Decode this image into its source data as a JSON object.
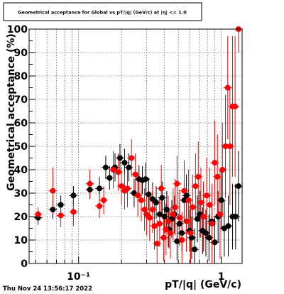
{
  "chart_data": {
    "type": "scatter",
    "title": "Geometrical acceptance for Global vs pT/|q| (GeV/c) at |η| <= 1.0",
    "xlabel": "pT/|q| (GeV/c)",
    "ylabel": "Geometrical acceptance (%)",
    "x_scale": "log",
    "xlim": [
      0.045,
      1.4
    ],
    "ylim": [
      0,
      100
    ],
    "yticks": [
      0,
      10,
      20,
      30,
      40,
      50,
      60,
      70,
      80,
      90,
      100
    ],
    "ytick_labels": [
      "0",
      "10",
      "20",
      "30",
      "40",
      "50",
      "60",
      "70",
      "80",
      "90",
      "100"
    ],
    "xticks_major": [
      0.1,
      1
    ],
    "xtick_labels": [
      "10⁻¹",
      "1"
    ],
    "grid": true,
    "timestamp": "Thu Nov 24 13:56:17 2022",
    "series": [
      {
        "color": "#000000",
        "points": [
          [
            0.052,
            19.5,
            3
          ],
          [
            0.066,
            23,
            4
          ],
          [
            0.075,
            25,
            4
          ],
          [
            0.092,
            29,
            4
          ],
          [
            0.12,
            31.5,
            4
          ],
          [
            0.14,
            32,
            5
          ],
          [
            0.155,
            41,
            5
          ],
          [
            0.165,
            36.5,
            5
          ],
          [
            0.18,
            41,
            6
          ],
          [
            0.195,
            45,
            6
          ],
          [
            0.21,
            43,
            6
          ],
          [
            0.225,
            41,
            6
          ],
          [
            0.245,
            30,
            6
          ],
          [
            0.265,
            36,
            6
          ],
          [
            0.28,
            35.5,
            6
          ],
          [
            0.295,
            36,
            7
          ],
          [
            0.31,
            29.5,
            7
          ],
          [
            0.33,
            27.5,
            7
          ],
          [
            0.35,
            26,
            7
          ],
          [
            0.37,
            21,
            7
          ],
          [
            0.385,
            28,
            7
          ],
          [
            0.4,
            20,
            7
          ],
          [
            0.415,
            23,
            8
          ],
          [
            0.43,
            14.5,
            8
          ],
          [
            0.45,
            19,
            8
          ],
          [
            0.47,
            21,
            8
          ],
          [
            0.49,
            9.5,
            8
          ],
          [
            0.51,
            17,
            8
          ],
          [
            0.53,
            13,
            8
          ],
          [
            0.55,
            27,
            9
          ],
          [
            0.57,
            29,
            9
          ],
          [
            0.6,
            14,
            9
          ],
          [
            0.62,
            11,
            9
          ],
          [
            0.65,
            6,
            9
          ],
          [
            0.68,
            19,
            10
          ],
          [
            0.71,
            21,
            10
          ],
          [
            0.74,
            14,
            10
          ],
          [
            0.78,
            13,
            10
          ],
          [
            0.82,
            11,
            10
          ],
          [
            0.86,
            18,
            11
          ],
          [
            0.9,
            9,
            11
          ],
          [
            0.95,
            20,
            11
          ],
          [
            1.0,
            27,
            12
          ],
          [
            1.05,
            15,
            12
          ],
          [
            1.12,
            16,
            13
          ],
          [
            1.2,
            20,
            14
          ],
          [
            1.26,
            20,
            14
          ],
          [
            1.32,
            33,
            15
          ]
        ]
      },
      {
        "color": "#ff0000",
        "points": [
          [
            0.052,
            21,
            3
          ],
          [
            0.066,
            31,
            10
          ],
          [
            0.075,
            20.5,
            5
          ],
          [
            0.092,
            22,
            6
          ],
          [
            0.12,
            34,
            6
          ],
          [
            0.14,
            24.5,
            5
          ],
          [
            0.15,
            27,
            6
          ],
          [
            0.175,
            40,
            8
          ],
          [
            0.19,
            39,
            8
          ],
          [
            0.2,
            33,
            8
          ],
          [
            0.21,
            31,
            8
          ],
          [
            0.22,
            32,
            8
          ],
          [
            0.235,
            45,
            8
          ],
          [
            0.25,
            38,
            9
          ],
          [
            0.26,
            29,
            9
          ],
          [
            0.275,
            27,
            9
          ],
          [
            0.29,
            23,
            9
          ],
          [
            0.3,
            21,
            9
          ],
          [
            0.315,
            19.5,
            10
          ],
          [
            0.33,
            23,
            10
          ],
          [
            0.34,
            16,
            10
          ],
          [
            0.355,
            8.5,
            10
          ],
          [
            0.37,
            17,
            10
          ],
          [
            0.38,
            32,
            10
          ],
          [
            0.395,
            11,
            10
          ],
          [
            0.41,
            14.5,
            11
          ],
          [
            0.425,
            18,
            11
          ],
          [
            0.44,
            13,
            11
          ],
          [
            0.46,
            21,
            11
          ],
          [
            0.475,
            24,
            12
          ],
          [
            0.49,
            34,
            12
          ],
          [
            0.51,
            19.5,
            12
          ],
          [
            0.53,
            10,
            12
          ],
          [
            0.55,
            31,
            13
          ],
          [
            0.57,
            18,
            13
          ],
          [
            0.59,
            27,
            13
          ],
          [
            0.61,
            13,
            13
          ],
          [
            0.63,
            24,
            14
          ],
          [
            0.66,
            33,
            14
          ],
          [
            0.69,
            37,
            15
          ],
          [
            0.72,
            26,
            15
          ],
          [
            0.75,
            20,
            15
          ],
          [
            0.79,
            29,
            16
          ],
          [
            0.83,
            25,
            16
          ],
          [
            0.86,
            17,
            17
          ],
          [
            0.9,
            43,
            18
          ],
          [
            0.94,
            37,
            18
          ],
          [
            0.98,
            21,
            19
          ],
          [
            1.02,
            40,
            20
          ],
          [
            1.07,
            50,
            22
          ],
          [
            1.11,
            75,
            22
          ],
          [
            1.15,
            50,
            25
          ],
          [
            1.2,
            67,
            30
          ],
          [
            1.25,
            67,
            30
          ],
          [
            1.32,
            100,
            10
          ]
        ]
      }
    ]
  }
}
